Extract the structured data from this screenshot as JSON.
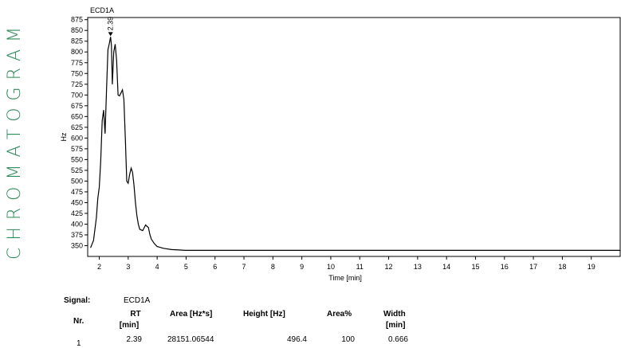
{
  "side_title": "CHROMATOGRAM",
  "colors": {
    "title": "#2f8a5a",
    "trace": "#000000"
  },
  "chart_data": {
    "type": "line",
    "signal_label": "ECD1A",
    "ylabel": "Hz",
    "xlabel": "Time [min]",
    "xlim": [
      1.6,
      20.0
    ],
    "ylim": [
      325,
      880
    ],
    "x_ticks": [
      2,
      3,
      4,
      5,
      6,
      7,
      8,
      9,
      10,
      11,
      12,
      13,
      14,
      15,
      16,
      17,
      18,
      19
    ],
    "y_ticks": [
      350,
      375,
      400,
      425,
      450,
      475,
      500,
      525,
      550,
      575,
      600,
      625,
      650,
      675,
      700,
      725,
      750,
      775,
      800,
      825,
      850,
      875
    ],
    "peak_annotation": {
      "x": 2.39,
      "y": 835,
      "label": "2.39"
    },
    "series": [
      {
        "x": [
          1.7,
          1.8,
          1.9,
          1.95,
          2.0,
          2.05,
          2.1,
          2.15,
          2.2,
          2.25,
          2.3,
          2.35,
          2.39,
          2.42,
          2.45,
          2.5,
          2.55,
          2.6,
          2.65,
          2.7,
          2.75,
          2.8,
          2.85,
          2.9,
          2.95,
          3.0,
          3.05,
          3.1,
          3.15,
          3.2,
          3.25,
          3.3,
          3.35,
          3.4,
          3.5,
          3.6,
          3.7,
          3.75,
          3.8,
          3.9,
          4.0,
          4.1,
          4.2,
          4.3,
          4.5,
          5.0,
          6.0,
          8.0,
          10.0,
          12.0,
          14.0,
          16.0,
          18.0,
          19.0,
          20.0
        ],
        "y": [
          345,
          362,
          415,
          460,
          485,
          545,
          640,
          665,
          610,
          710,
          805,
          820,
          835,
          815,
          725,
          800,
          818,
          780,
          700,
          698,
          705,
          712,
          690,
          600,
          500,
          495,
          515,
          530,
          520,
          490,
          450,
          420,
          400,
          388,
          385,
          398,
          392,
          375,
          365,
          355,
          348,
          346,
          344,
          343,
          341,
          339,
          339,
          339,
          339,
          339,
          339,
          339,
          339,
          339,
          339
        ]
      }
    ]
  },
  "table": {
    "signal_label": "Signal:",
    "signal_value": "ECD1A",
    "headers": {
      "nr": "Nr.",
      "rt": "RT",
      "rt_unit": "[min]",
      "area": "Area [Hz*s]",
      "height": "Height [Hz]",
      "area_pct": "Area%",
      "width": "Width",
      "width_unit": "[min]"
    },
    "rows": [
      {
        "nr": "1",
        "rt": "2.39",
        "area": "28151.06544",
        "height": "496.4",
        "area_pct": "100",
        "width": "0.666"
      }
    ]
  }
}
